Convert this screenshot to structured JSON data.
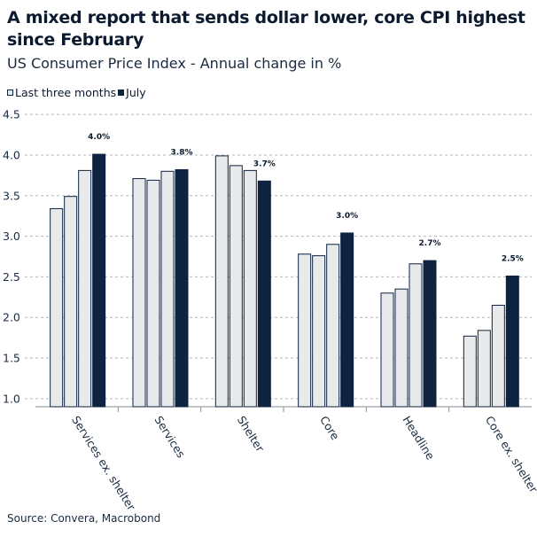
{
  "header": {
    "title": "A mixed report that sends dollar lower, core CPI highest since February",
    "subtitle": "US Consumer Price Index - Annual change in %"
  },
  "legend": {
    "items": [
      {
        "label": "Last three months"
      },
      {
        "label": "July"
      }
    ]
  },
  "footer": {
    "source": "Source: Convera, Macrobond"
  },
  "colors": {
    "light_bar": "#e8e9eb",
    "dark_bar": "#0d2340",
    "outline": "#0d2340",
    "grid": "#b5b5b5"
  },
  "chart_data": {
    "type": "bar",
    "title": "A mixed report that sends dollar lower, core CPI highest since February",
    "subtitle": "US Consumer Price Index - Annual change in %",
    "xlabel": "",
    "ylabel": "",
    "ylim": [
      0.9,
      4.6
    ],
    "yticks": [
      1.0,
      1.5,
      2.0,
      2.5,
      3.0,
      3.5,
      4.0,
      4.5
    ],
    "grid": true,
    "legend_position": "top-left",
    "categories": [
      "Services ex. shelter",
      "Services",
      "Shelter",
      "Core",
      "Headline",
      "Core ex. shelter"
    ],
    "series": [
      {
        "name": "Last three months (1)",
        "values": [
          3.34,
          3.71,
          3.99,
          2.78,
          2.3,
          1.77
        ]
      },
      {
        "name": "Last three months (2)",
        "values": [
          3.49,
          3.69,
          3.87,
          2.76,
          2.35,
          1.84
        ]
      },
      {
        "name": "Last three months (3)",
        "values": [
          3.81,
          3.8,
          3.81,
          2.9,
          2.66,
          2.15
        ]
      },
      {
        "name": "July",
        "values": [
          4.01,
          3.82,
          3.68,
          3.04,
          2.7,
          2.51
        ]
      }
    ],
    "data_labels": [
      "4.0%",
      "3.8%",
      "3.7%",
      "3.0%",
      "2.7%",
      "2.5%"
    ]
  }
}
